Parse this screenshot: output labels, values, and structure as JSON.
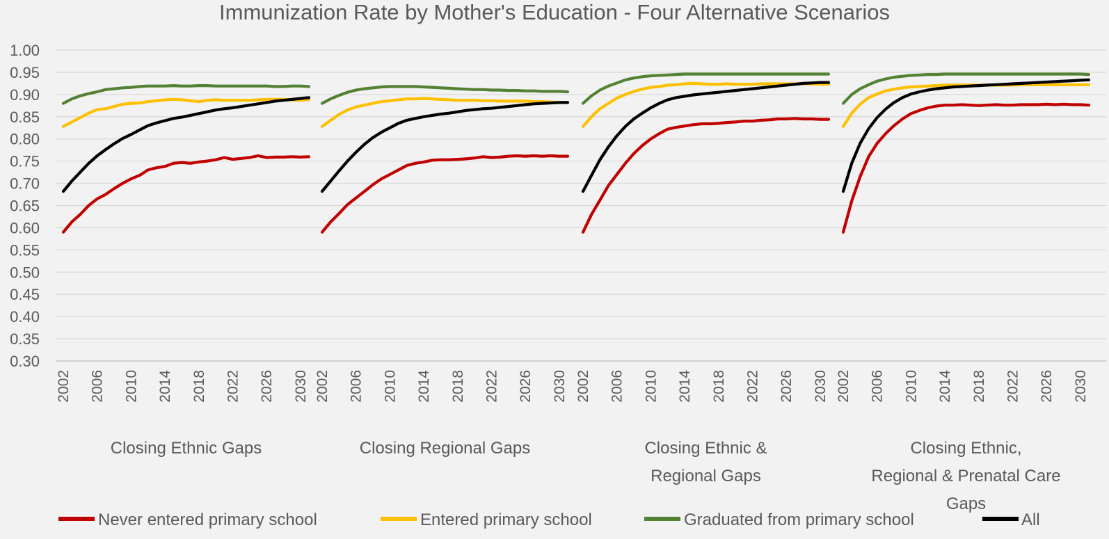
{
  "chart_data": {
    "type": "line",
    "title": "Immunization Rate by Mother's Education - Four Alternative Scenarios",
    "ylim": [
      0.3,
      1.0
    ],
    "yticks": [
      "0.30",
      "0.35",
      "0.40",
      "0.45",
      "0.50",
      "0.55",
      "0.60",
      "0.65",
      "0.70",
      "0.75",
      "0.80",
      "0.85",
      "0.90",
      "0.95",
      "1.00"
    ],
    "x": [
      2002,
      2003,
      2004,
      2005,
      2006,
      2007,
      2008,
      2009,
      2010,
      2011,
      2012,
      2013,
      2014,
      2015,
      2016,
      2017,
      2018,
      2019,
      2020,
      2021,
      2022,
      2023,
      2024,
      2025,
      2026,
      2027,
      2028,
      2029,
      2030,
      2031
    ],
    "xtick_labels": [
      "2002",
      "2006",
      "2010",
      "2014",
      "2018",
      "2022",
      "2026",
      "2030"
    ],
    "grid": true,
    "legend_position": "bottom",
    "legend": [
      {
        "name": "Never entered primary school",
        "color": "#c00000"
      },
      {
        "name": "Entered primary school",
        "color": "#ffc000"
      },
      {
        "name": "Graduated from primary school",
        "color": "#548235"
      },
      {
        "name": "All",
        "color": "#000000"
      }
    ],
    "groups": [
      {
        "label_lines": [
          "Closing Ethnic Gaps"
        ],
        "series": [
          {
            "name": "Never entered primary school",
            "values": [
              0.59,
              0.613,
              0.63,
              0.65,
              0.665,
              0.675,
              0.688,
              0.7,
              0.71,
              0.718,
              0.73,
              0.735,
              0.738,
              0.745,
              0.747,
              0.745,
              0.748,
              0.75,
              0.753,
              0.758,
              0.754,
              0.756,
              0.758,
              0.762,
              0.758,
              0.759,
              0.759,
              0.76,
              0.759,
              0.76
            ]
          },
          {
            "name": "Entered primary school",
            "values": [
              0.828,
              0.838,
              0.848,
              0.858,
              0.866,
              0.868,
              0.873,
              0.878,
              0.88,
              0.881,
              0.884,
              0.886,
              0.888,
              0.889,
              0.888,
              0.886,
              0.884,
              0.887,
              0.888,
              0.887,
              0.887,
              0.887,
              0.887,
              0.888,
              0.889,
              0.889,
              0.889,
              0.888,
              0.887,
              0.889
            ]
          },
          {
            "name": "Graduated from primary school",
            "values": [
              0.88,
              0.89,
              0.897,
              0.902,
              0.906,
              0.911,
              0.913,
              0.915,
              0.916,
              0.918,
              0.919,
              0.919,
              0.919,
              0.92,
              0.919,
              0.919,
              0.92,
              0.92,
              0.919,
              0.919,
              0.919,
              0.919,
              0.919,
              0.919,
              0.919,
              0.918,
              0.918,
              0.919,
              0.919,
              0.918
            ]
          },
          {
            "name": "All",
            "values": [
              0.682,
              0.705,
              0.725,
              0.745,
              0.762,
              0.776,
              0.789,
              0.801,
              0.81,
              0.82,
              0.83,
              0.836,
              0.841,
              0.846,
              0.849,
              0.853,
              0.857,
              0.861,
              0.865,
              0.868,
              0.87,
              0.873,
              0.876,
              0.879,
              0.882,
              0.885,
              0.887,
              0.889,
              0.891,
              0.893
            ]
          }
        ]
      },
      {
        "label_lines": [
          "Closing Regional Gaps"
        ],
        "series": [
          {
            "name": "Never entered primary school",
            "values": [
              0.59,
              0.613,
              0.632,
              0.652,
              0.667,
              0.682,
              0.697,
              0.71,
              0.72,
              0.73,
              0.74,
              0.745,
              0.748,
              0.752,
              0.753,
              0.753,
              0.754,
              0.755,
              0.757,
              0.76,
              0.758,
              0.759,
              0.761,
              0.762,
              0.761,
              0.762,
              0.761,
              0.762,
              0.761,
              0.761
            ]
          },
          {
            "name": "Entered primary school",
            "values": [
              0.828,
              0.842,
              0.855,
              0.865,
              0.872,
              0.876,
              0.88,
              0.884,
              0.886,
              0.888,
              0.89,
              0.89,
              0.891,
              0.89,
              0.889,
              0.888,
              0.887,
              0.887,
              0.887,
              0.886,
              0.886,
              0.885,
              0.885,
              0.885,
              0.885,
              0.884,
              0.884,
              0.883,
              0.882,
              0.882
            ]
          },
          {
            "name": "Graduated from primary school",
            "values": [
              0.88,
              0.89,
              0.898,
              0.905,
              0.91,
              0.913,
              0.915,
              0.917,
              0.918,
              0.918,
              0.918,
              0.918,
              0.917,
              0.916,
              0.915,
              0.914,
              0.913,
              0.912,
              0.911,
              0.911,
              0.91,
              0.91,
              0.909,
              0.909,
              0.908,
              0.908,
              0.907,
              0.907,
              0.907,
              0.906
            ]
          },
          {
            "name": "All",
            "values": [
              0.682,
              0.705,
              0.728,
              0.75,
              0.77,
              0.788,
              0.803,
              0.815,
              0.825,
              0.835,
              0.842,
              0.846,
              0.85,
              0.853,
              0.856,
              0.858,
              0.861,
              0.864,
              0.866,
              0.868,
              0.869,
              0.871,
              0.873,
              0.875,
              0.877,
              0.879,
              0.88,
              0.881,
              0.882,
              0.882
            ]
          }
        ]
      },
      {
        "label_lines": [
          "Closing Ethnic &",
          "Regional Gaps"
        ],
        "series": [
          {
            "name": "Never entered primary school",
            "values": [
              0.59,
              0.63,
              0.662,
              0.695,
              0.72,
              0.745,
              0.767,
              0.785,
              0.8,
              0.812,
              0.822,
              0.826,
              0.829,
              0.832,
              0.834,
              0.834,
              0.835,
              0.837,
              0.838,
              0.84,
              0.84,
              0.842,
              0.843,
              0.845,
              0.845,
              0.846,
              0.845,
              0.845,
              0.844,
              0.844
            ]
          },
          {
            "name": "Entered primary school",
            "values": [
              0.828,
              0.85,
              0.868,
              0.88,
              0.892,
              0.9,
              0.907,
              0.912,
              0.916,
              0.918,
              0.921,
              0.922,
              0.924,
              0.925,
              0.924,
              0.923,
              0.923,
              0.924,
              0.923,
              0.923,
              0.923,
              0.924,
              0.924,
              0.924,
              0.924,
              0.924,
              0.924,
              0.924,
              0.923,
              0.923
            ]
          },
          {
            "name": "Graduated from primary school",
            "values": [
              0.88,
              0.897,
              0.91,
              0.919,
              0.926,
              0.933,
              0.937,
              0.94,
              0.942,
              0.943,
              0.944,
              0.945,
              0.946,
              0.946,
              0.946,
              0.946,
              0.946,
              0.946,
              0.946,
              0.946,
              0.946,
              0.946,
              0.946,
              0.946,
              0.946,
              0.946,
              0.946,
              0.946,
              0.946,
              0.946
            ]
          },
          {
            "name": "All",
            "values": [
              0.682,
              0.718,
              0.753,
              0.782,
              0.807,
              0.828,
              0.845,
              0.858,
              0.87,
              0.88,
              0.888,
              0.893,
              0.896,
              0.899,
              0.901,
              0.903,
              0.905,
              0.907,
              0.909,
              0.911,
              0.913,
              0.915,
              0.917,
              0.919,
              0.921,
              0.923,
              0.925,
              0.926,
              0.927,
              0.927
            ]
          }
        ]
      },
      {
        "label_lines": [
          "Closing Ethnic,",
          "Regional & Prenatal Care",
          "Gaps"
        ],
        "series": [
          {
            "name": "Never entered primary school",
            "values": [
              0.59,
              0.66,
              0.715,
              0.76,
              0.79,
              0.812,
              0.83,
              0.845,
              0.857,
              0.864,
              0.87,
              0.874,
              0.876,
              0.876,
              0.877,
              0.876,
              0.875,
              0.876,
              0.877,
              0.876,
              0.876,
              0.877,
              0.877,
              0.877,
              0.878,
              0.877,
              0.878,
              0.877,
              0.877,
              0.876
            ]
          },
          {
            "name": "Entered primary school",
            "values": [
              0.828,
              0.858,
              0.878,
              0.893,
              0.901,
              0.908,
              0.912,
              0.915,
              0.917,
              0.918,
              0.919,
              0.92,
              0.921,
              0.921,
              0.921,
              0.921,
              0.921,
              0.921,
              0.921,
              0.921,
              0.921,
              0.922,
              0.922,
              0.922,
              0.922,
              0.922,
              0.922,
              0.922,
              0.922,
              0.922
            ]
          },
          {
            "name": "Graduated from primary school",
            "values": [
              0.88,
              0.9,
              0.913,
              0.922,
              0.93,
              0.935,
              0.939,
              0.941,
              0.943,
              0.944,
              0.945,
              0.945,
              0.946,
              0.946,
              0.946,
              0.946,
              0.946,
              0.946,
              0.946,
              0.946,
              0.946,
              0.946,
              0.946,
              0.946,
              0.946,
              0.946,
              0.946,
              0.946,
              0.946,
              0.945
            ]
          },
          {
            "name": "All",
            "values": [
              0.682,
              0.745,
              0.79,
              0.823,
              0.848,
              0.867,
              0.882,
              0.893,
              0.901,
              0.906,
              0.91,
              0.913,
              0.915,
              0.917,
              0.918,
              0.919,
              0.92,
              0.921,
              0.922,
              0.923,
              0.924,
              0.925,
              0.926,
              0.927,
              0.928,
              0.929,
              0.93,
              0.931,
              0.932,
              0.933
            ]
          }
        ]
      }
    ]
  }
}
